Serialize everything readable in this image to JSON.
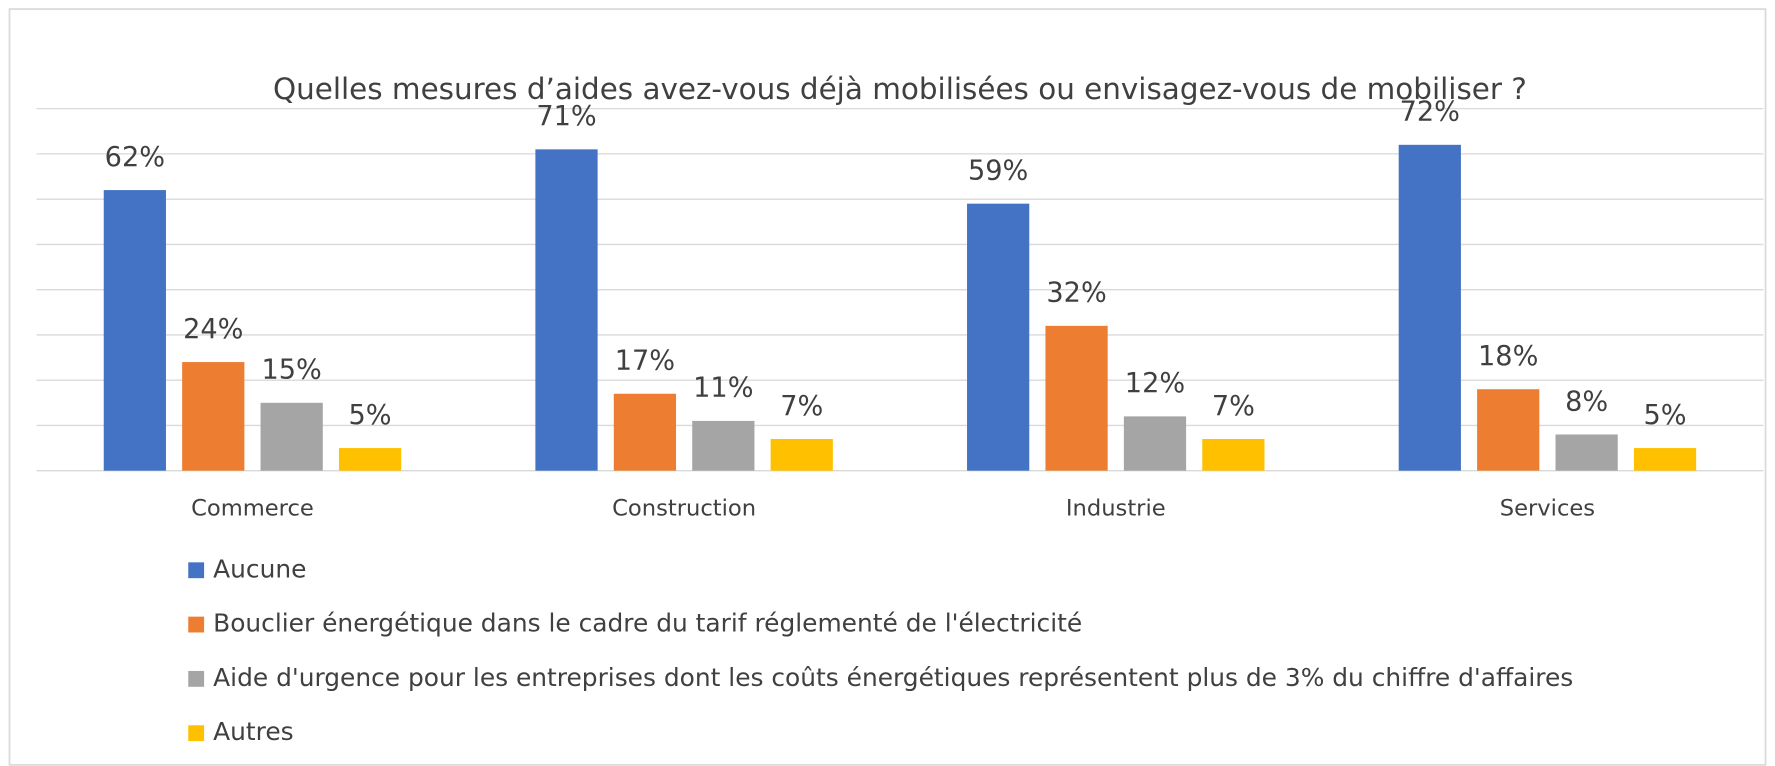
{
  "chart_data": {
    "type": "bar",
    "title": "Quelles mesures d’aides avez-vous déjà mobilisées ou envisagez-vous de mobiliser ?",
    "categories": [
      "Commerce",
      "Construction",
      "Industrie",
      "Services"
    ],
    "series": [
      {
        "name": "Aucune",
        "color": "#4472c4",
        "values": [
          62,
          71,
          59,
          72
        ],
        "value_labels": [
          "62%",
          "71%",
          "59%",
          "72%"
        ]
      },
      {
        "name": "Bouclier énergétique dans le cadre du tarif réglementé de l'électricité",
        "color": "#ed7d31",
        "values": [
          24,
          17,
          32,
          18
        ],
        "value_labels": [
          "24%",
          "17%",
          "32%",
          "18%"
        ]
      },
      {
        "name": "Aide d'urgence pour les entreprises dont les coûts énergétiques représentent plus de 3% du chiffre d'affaires",
        "color": "#a5a5a5",
        "values": [
          15,
          11,
          12,
          8
        ],
        "value_labels": [
          "15%",
          "11%",
          "12%",
          "8%"
        ]
      },
      {
        "name": "Autres",
        "color": "#ffc000",
        "values": [
          5,
          7,
          7,
          5
        ],
        "value_labels": [
          "5%",
          "7%",
          "7%",
          "5%"
        ]
      }
    ],
    "ylim": [
      0,
      80
    ],
    "yticks": [
      0,
      10,
      20,
      30,
      40,
      50,
      60,
      70,
      80
    ],
    "grid": true,
    "legend": "bottom"
  }
}
